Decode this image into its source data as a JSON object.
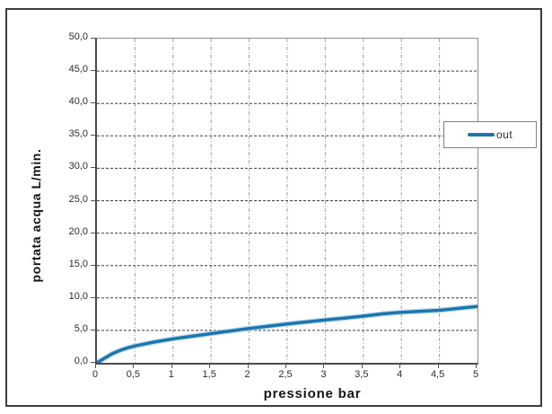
{
  "chart_data": {
    "type": "line",
    "title": "",
    "xlabel": "pressione bar",
    "ylabel": "portata acqua L/min.",
    "xlim": [
      0,
      5
    ],
    "ylim": [
      0,
      50
    ],
    "grid": true,
    "legend_position": "right-overlay",
    "x_ticks": [
      {
        "value": 0,
        "label": "0"
      },
      {
        "value": 0.5,
        "label": "0,5"
      },
      {
        "value": 1,
        "label": "1"
      },
      {
        "value": 1.5,
        "label": "1,5"
      },
      {
        "value": 2,
        "label": "2"
      },
      {
        "value": 2.5,
        "label": "2,5"
      },
      {
        "value": 3,
        "label": "3"
      },
      {
        "value": 3.5,
        "label": "3,5"
      },
      {
        "value": 4,
        "label": "4"
      },
      {
        "value": 4.5,
        "label": "4,5"
      },
      {
        "value": 5,
        "label": "5"
      }
    ],
    "y_ticks": [
      {
        "value": 0,
        "label": "0,0"
      },
      {
        "value": 5,
        "label": "5,0"
      },
      {
        "value": 10,
        "label": "10,0"
      },
      {
        "value": 15,
        "label": "15,0"
      },
      {
        "value": 20,
        "label": "20,0"
      },
      {
        "value": 25,
        "label": "25,0"
      },
      {
        "value": 30,
        "label": "30,0"
      },
      {
        "value": 35,
        "label": "35,0"
      },
      {
        "value": 40,
        "label": "40,0"
      },
      {
        "value": 45,
        "label": "45,0"
      },
      {
        "value": 50,
        "label": "50,0"
      }
    ],
    "series": [
      {
        "name": "out",
        "color": "#1b76ad",
        "x": [
          0,
          0.1,
          0.2,
          0.3,
          0.4,
          0.5,
          0.75,
          1,
          1.25,
          1.5,
          1.75,
          2,
          2.25,
          2.5,
          2.75,
          3,
          3.25,
          3.5,
          3.75,
          4,
          4.25,
          4.5,
          4.75,
          5
        ],
        "y": [
          0,
          0.7,
          1.4,
          1.9,
          2.3,
          2.6,
          3.2,
          3.7,
          4.1,
          4.5,
          4.9,
          5.3,
          5.65,
          6.0,
          6.3,
          6.6,
          6.9,
          7.2,
          7.55,
          7.8,
          7.95,
          8.1,
          8.4,
          8.7
        ]
      }
    ]
  },
  "legend": {
    "label": "out"
  },
  "colors": {
    "curve": "#1b76ad",
    "curve_halo": "#a9cfe4",
    "h_grid": "#3f3f3f",
    "v_grid": "#a0a0a0",
    "axis": "#555555",
    "plot_border": "#8c8c8c",
    "frame": "#3d3d3d",
    "text": "#2b2b2b"
  }
}
